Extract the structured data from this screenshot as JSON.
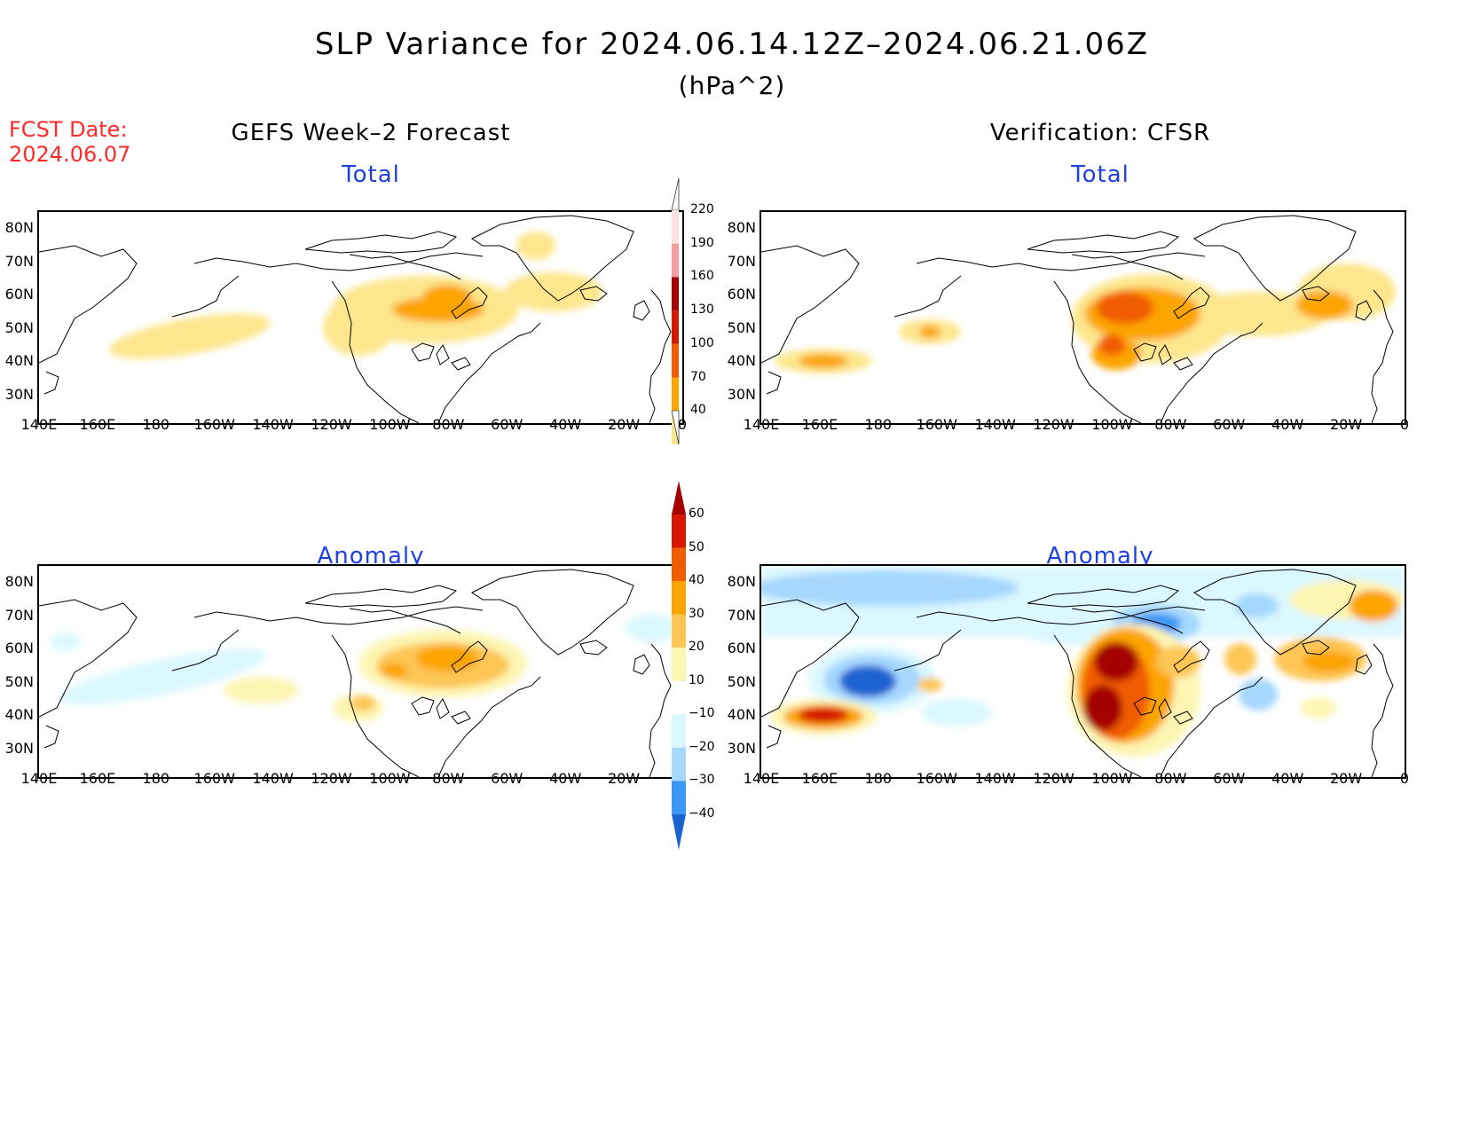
{
  "title": "SLP Variance for 2024.06.14.12Z–2024.06.21.06Z",
  "units": "(hPa^2)",
  "fcst_label": "FCST Date:",
  "fcst_date": "2024.06.07",
  "left_column_title": "GEFS Week–2 Forecast",
  "right_column_title": "Verification: CFSR",
  "panels": {
    "fc_total_title": "Total",
    "ver_total_title": "Total",
    "fc_anom_title": "Anomaly",
    "ver_anom_title": "Anomaly"
  },
  "lat_labels": [
    "80N",
    "70N",
    "60N",
    "50N",
    "40N",
    "30N"
  ],
  "lon_labels": [
    "140E",
    "160E",
    "180",
    "160W",
    "140W",
    "120W",
    "100W",
    "80W",
    "60W",
    "40W",
    "20W",
    "0"
  ],
  "total_colorbar": {
    "labels": [
      "220",
      "190",
      "160",
      "130",
      "100",
      "70",
      "40"
    ],
    "colors": [
      "#fde1e1",
      "#f29e9e",
      "#a50000",
      "#d71800",
      "#f15c00",
      "#fca400",
      "#fde68c"
    ]
  },
  "anomaly_colorbar": {
    "labels": [
      "60",
      "50",
      "40",
      "30",
      "20",
      "10",
      "−10",
      "−20",
      "−30",
      "−40"
    ],
    "colors": [
      "#a50000",
      "#d71800",
      "#f15c00",
      "#fca400",
      "#fdc654",
      "#fdf5b2",
      "#ffffff",
      "#dcf8ff",
      "#a5d7ff",
      "#3d97f5",
      "#1a64d1"
    ]
  },
  "colors": {
    "fcst_red": "#ff2a2a",
    "panel_title_blue": "#1f3fe0"
  }
}
